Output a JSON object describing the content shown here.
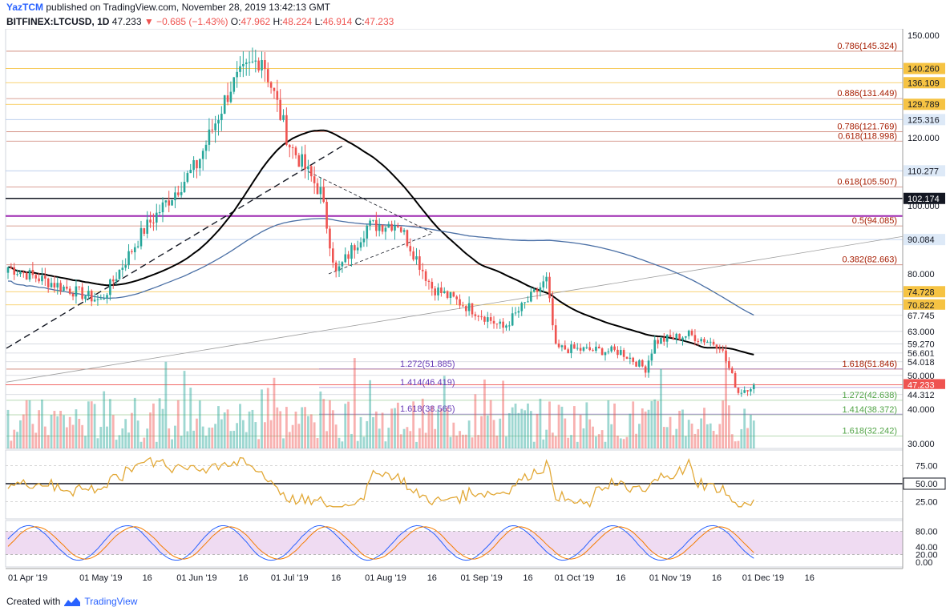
{
  "header": {
    "author": "YazTCM",
    "published_text": "published on TradingView.com, November 28, 2019 13:42:13 GMT",
    "symbol": "BITFINEX:LTCUSD, 1D",
    "last": "47.233",
    "change": "▼ −0.685 (−1.43%)",
    "o_label": "O:",
    "o_value": "47.962",
    "h_label": "H:",
    "h_value": "48.224",
    "l_label": "L:",
    "l_value": "46.914",
    "c_label": "C:",
    "c_value": "47.233"
  },
  "footer": {
    "created_with": "Created with",
    "brand": "TradingView"
  },
  "chart_data": {
    "type": "candlestick",
    "price_axis_ticks": [
      150,
      120,
      100,
      80,
      40,
      30
    ],
    "price_axis_labels": [
      "150.000",
      "120.000",
      "100.000",
      "80.000",
      "40.000",
      "30.000"
    ],
    "x_axis_labels": [
      "01 Apr '19",
      "01 May '19",
      "16",
      "01 Jun '19",
      "16",
      "01 Jul '19",
      "16",
      "01 Aug '19",
      "16",
      "01 Sep '19",
      "16",
      "01 Oct '19",
      "16",
      "01 Nov '19",
      "16",
      "01 Dec '19",
      "16"
    ],
    "x_axis_dates": [
      "2019-04-01",
      "2019-05-01",
      "2019-05-16",
      "2019-06-01",
      "2019-06-16",
      "2019-07-01",
      "2019-07-16",
      "2019-08-01",
      "2019-08-16",
      "2019-09-01",
      "2019-09-16",
      "2019-10-01",
      "2019-10-16",
      "2019-11-01",
      "2019-11-16",
      "2019-12-01",
      "2019-12-16"
    ],
    "price_key": [
      {
        "date": "2019-04-01",
        "close": 82
      },
      {
        "date": "2019-05-01",
        "close": 72
      },
      {
        "date": "2019-05-15",
        "close": 93
      },
      {
        "date": "2019-06-01",
        "close": 112
      },
      {
        "date": "2019-06-12",
        "close": 135
      },
      {
        "date": "2019-06-22",
        "close": 144
      },
      {
        "date": "2019-07-01",
        "close": 118
      },
      {
        "date": "2019-07-11",
        "close": 104
      },
      {
        "date": "2019-07-16",
        "close": 80
      },
      {
        "date": "2019-07-26",
        "close": 94
      },
      {
        "date": "2019-08-05",
        "close": 95
      },
      {
        "date": "2019-08-16",
        "close": 76
      },
      {
        "date": "2019-09-01",
        "close": 68
      },
      {
        "date": "2019-09-08",
        "close": 64
      },
      {
        "date": "2019-09-22",
        "close": 78
      },
      {
        "date": "2019-09-25",
        "close": 58
      },
      {
        "date": "2019-10-16",
        "close": 57
      },
      {
        "date": "2019-10-24",
        "close": 52
      },
      {
        "date": "2019-10-27",
        "close": 60
      },
      {
        "date": "2019-11-07",
        "close": 62
      },
      {
        "date": "2019-11-17",
        "close": 59
      },
      {
        "date": "2019-11-23",
        "close": 45
      },
      {
        "date": "2019-11-28",
        "close": 47.233
      }
    ],
    "price_levels": [
      {
        "label": "0.786(145.324)",
        "value": 145.324,
        "color": "#a61c00"
      },
      {
        "label": "0.886(131.449)",
        "value": 131.449,
        "color": "#a61c00"
      },
      {
        "label": "0.786(121.769)",
        "value": 121.769,
        "color": "#a61c00"
      },
      {
        "label": "0.618(118.998)",
        "value": 118.998,
        "color": "#a61c00"
      },
      {
        "label": "0.618(105.507)",
        "value": 105.507,
        "color": "#a61c00"
      },
      {
        "label": "0.5(94.085)",
        "value": 94.085,
        "color": "#a61c00"
      },
      {
        "label": "0.382(82.663)",
        "value": 82.663,
        "color": "#a61c00"
      },
      {
        "label": "1.618(51.846)",
        "value": 51.846,
        "color": "#a61c00"
      },
      {
        "label": "1.272(42.638)",
        "value": 42.638,
        "color": "#52a447"
      },
      {
        "label": "1.414(38.372)",
        "value": 38.372,
        "color": "#52a447"
      },
      {
        "label": "1.618(32.242)",
        "value": 32.242,
        "color": "#52a447"
      },
      {
        "label": "1.272(51.885)",
        "value": 51.885,
        "color": "#673ab7"
      },
      {
        "label": "1.414(46.419)",
        "value": 46.419,
        "color": "#673ab7"
      },
      {
        "label": "1.618(38.565)",
        "value": 38.565,
        "color": "#673ab7"
      }
    ],
    "axis_badges": [
      {
        "label": "140.260",
        "value": 140.26,
        "bg": "#f6c343"
      },
      {
        "label": "136.109",
        "value": 136.109,
        "bg": "#f6c343"
      },
      {
        "label": "129.789",
        "value": 129.789,
        "bg": "#f6c343"
      },
      {
        "label": "125.316",
        "value": 125.316,
        "bg": "#dde9f7"
      },
      {
        "label": "110.277",
        "value": 110.277,
        "bg": "#dde9f7"
      },
      {
        "label": "102.174",
        "value": 102.174,
        "bg": "#131722"
      },
      {
        "label": "90.084",
        "value": 90.084,
        "bg": "#dde9f7"
      },
      {
        "label": "74.728",
        "value": 74.728,
        "bg": "#f6c343"
      },
      {
        "label": "70.822",
        "value": 70.822,
        "bg": "#f6c343"
      },
      {
        "label": "67.745",
        "value": 67.745,
        "bg": "#ffffff"
      },
      {
        "label": "63.000",
        "value": 63,
        "bg": "#ffffff"
      },
      {
        "label": "59.270",
        "value": 59.27,
        "bg": "#ffffff"
      },
      {
        "label": "56.601",
        "value": 56.601,
        "bg": "#ffffff"
      },
      {
        "label": "54.018",
        "value": 54.018,
        "bg": "#ffffff"
      },
      {
        "label": "50.000",
        "value": 50,
        "bg": "#ffffff"
      },
      {
        "label": "47.233",
        "value": 47.233,
        "bg": "#ef5350"
      },
      {
        "label": "44.312",
        "value": 44.312,
        "bg": "#ffffff"
      }
    ],
    "rsi": {
      "axis_labels": [
        "75.00",
        "50.00",
        "25.00"
      ],
      "levels": [
        75,
        50,
        25
      ],
      "color": "#e2a836"
    },
    "stoch": {
      "axis_labels": [
        "80.00",
        "40.00",
        "20.00",
        "0.00"
      ],
      "levels": [
        80,
        40,
        20,
        0
      ],
      "band": [
        20,
        80
      ]
    },
    "colors": {
      "up": "#26a69a",
      "down": "#ef5350",
      "ma_black": "#000000",
      "ma_blue": "#4a6fa5",
      "band": "#e1bee7",
      "purple": "#9c27b0"
    }
  }
}
